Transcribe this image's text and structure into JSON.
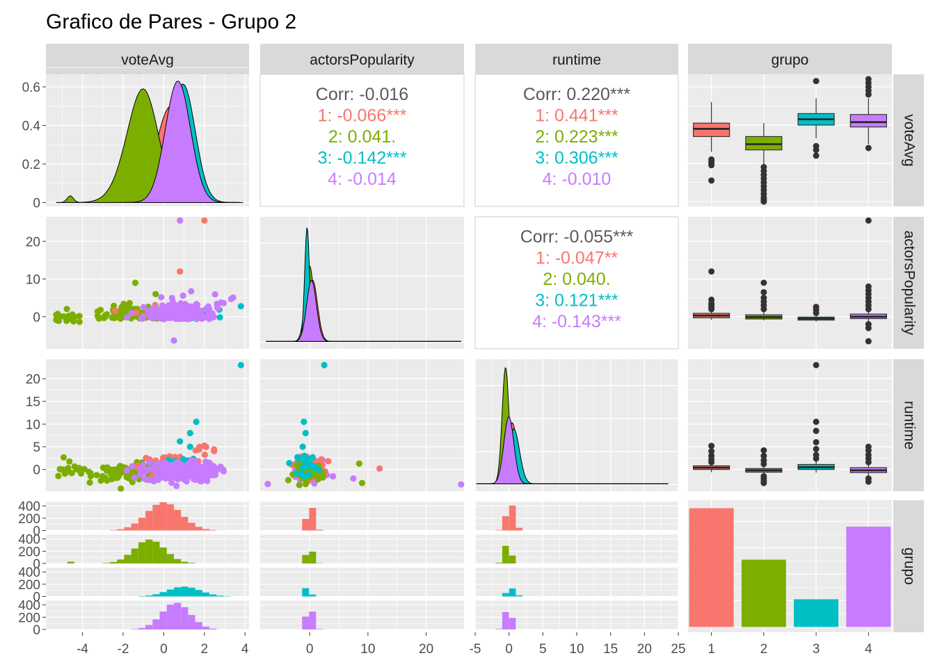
{
  "title": "Grafico de Pares - Grupo 2",
  "vars": [
    "voteAvg",
    "actorsPopularity",
    "runtime",
    "grupo"
  ],
  "colors": {
    "1": "#F8766D",
    "2": "#7CAE00",
    "3": "#00BFC4",
    "4": "#C77CFF"
  },
  "groups": [
    "1",
    "2",
    "3",
    "4"
  ],
  "chart_data": {
    "type": "scatter",
    "title": "Grafico de Pares - Grupo 2",
    "variables": [
      "voteAvg",
      "actorsPopularity",
      "runtime",
      "grupo"
    ],
    "axes": {
      "voteAvg": {
        "range": [
          -5.8,
          4.2
        ],
        "ticks": [
          -4,
          -2,
          0,
          2,
          4
        ]
      },
      "actorsPopularity": {
        "range": [
          -8.5,
          26.5
        ],
        "ticks": [
          0,
          10,
          20
        ]
      },
      "runtime": {
        "range": [
          -5,
          25
        ],
        "ticks": [
          -5,
          0,
          5,
          10,
          15,
          20,
          25
        ]
      },
      "grupo": {
        "ticks": [
          "1",
          "2",
          "3",
          "4"
        ]
      }
    },
    "row_ticks": {
      "voteAvg_density": [
        0.0,
        0.2,
        0.4,
        0.6
      ],
      "actorsPopularity": [
        0,
        10,
        20
      ],
      "runtime": [
        0,
        5,
        10,
        15,
        20
      ],
      "histogram_count": [
        0,
        200,
        400
      ]
    },
    "correlations": [
      {
        "pair": [
          "voteAvg",
          "actorsPopularity"
        ],
        "lines": [
          {
            "label": "Corr: -0.016",
            "group": "all"
          },
          {
            "label": "1: -0.066***",
            "group": "1"
          },
          {
            "label": "2: 0.041.",
            "group": "2"
          },
          {
            "label": "3: -0.142***",
            "group": "3"
          },
          {
            "label": "4: -0.014",
            "group": "4"
          }
        ]
      },
      {
        "pair": [
          "voteAvg",
          "runtime"
        ],
        "lines": [
          {
            "label": "Corr: 0.220***",
            "group": "all"
          },
          {
            "label": "1: 0.441***",
            "group": "1"
          },
          {
            "label": "2: 0.223***",
            "group": "2"
          },
          {
            "label": "3: 0.306***",
            "group": "3"
          },
          {
            "label": "4: -0.010",
            "group": "4"
          }
        ]
      },
      {
        "pair": [
          "actorsPopularity",
          "runtime"
        ],
        "lines": [
          {
            "label": "Corr: -0.055***",
            "group": "all"
          },
          {
            "label": "1: -0.047**",
            "group": "1"
          },
          {
            "label": "2: 0.040.",
            "group": "2"
          },
          {
            "label": "3: 0.121***",
            "group": "3"
          },
          {
            "label": "4: -0.143***",
            "group": "4"
          }
        ]
      }
    ],
    "group_counts": {
      "1": 450,
      "2": 255,
      "3": 105,
      "4": 380
    },
    "boxplots": {
      "voteAvg": [
        {
          "group": "1",
          "q1": 0.34,
          "median": 0.38,
          "q3": 0.41,
          "lower": 0.26,
          "upper": 0.52,
          "outliers": [
            0.11,
            0.19,
            0.2,
            0.21,
            0.22
          ]
        },
        {
          "group": "2",
          "q1": 0.27,
          "median": 0.3,
          "q3": 0.34,
          "lower": 0.19,
          "upper": 0.41,
          "outliers": [
            0.0,
            0.01,
            0.02,
            0.04,
            0.06,
            0.08,
            0.1,
            0.12,
            0.14,
            0.16,
            0.18
          ]
        },
        {
          "group": "3",
          "q1": 0.4,
          "median": 0.43,
          "q3": 0.46,
          "lower": 0.33,
          "upper": 0.54,
          "outliers": [
            0.24,
            0.27,
            0.29,
            0.63
          ]
        },
        {
          "group": "4",
          "q1": 0.39,
          "median": 0.415,
          "q3": 0.455,
          "lower": 0.3,
          "upper": 0.54,
          "outliers": [
            0.28,
            0.56,
            0.58,
            0.6,
            0.62,
            0.64
          ]
        }
      ],
      "actorsPopularity": [
        {
          "group": "1",
          "q1": -0.3,
          "median": 0.3,
          "q3": 0.9,
          "lower": -0.8,
          "upper": 1.6,
          "outliers": [
            2.0,
            2.5,
            3.0,
            3.5,
            4.5,
            12.0
          ]
        },
        {
          "group": "2",
          "q1": -0.6,
          "median": -0.1,
          "q3": 0.5,
          "lower": -1.0,
          "upper": 1.3,
          "outliers": [
            2.0,
            3.0,
            4.0,
            5.0,
            6.5,
            9.0
          ]
        },
        {
          "group": "3",
          "q1": -0.9,
          "median": -0.5,
          "q3": -0.1,
          "lower": -1.3,
          "upper": 0.5,
          "outliers": [
            1.0,
            1.8,
            2.6
          ]
        },
        {
          "group": "4",
          "q1": -0.5,
          "median": 0.0,
          "q3": 0.7,
          "lower": -1.3,
          "upper": 1.6,
          "outliers": [
            -2.0,
            -3.0,
            -6.5,
            2.0,
            3.0,
            4.0,
            5.0,
            6.0,
            7.0,
            8.0,
            25.5
          ]
        }
      ],
      "runtime": [
        {
          "group": "1",
          "q1": 0.0,
          "median": 0.4,
          "q3": 0.8,
          "lower": -0.6,
          "upper": 1.3,
          "outliers": [
            1.6,
            2.2,
            3.0,
            4.0,
            5.2
          ]
        },
        {
          "group": "2",
          "q1": -0.6,
          "median": -0.2,
          "q3": 0.2,
          "lower": -1.1,
          "upper": 0.8,
          "outliers": [
            -1.5,
            -2.0,
            -2.5,
            -3.0,
            1.2,
            2.0,
            3.0,
            4.2
          ]
        },
        {
          "group": "3",
          "q1": 0.0,
          "median": 0.5,
          "q3": 1.1,
          "lower": -0.7,
          "upper": 1.9,
          "outliers": [
            2.4,
            3.2,
            4.5,
            6.0,
            8.5,
            10.5,
            23.0
          ]
        },
        {
          "group": "4",
          "q1": -0.7,
          "median": -0.2,
          "q3": 0.4,
          "lower": -1.4,
          "upper": 1.2,
          "outliers": [
            -2.0,
            -2.7,
            1.6,
            2.4,
            3.2,
            4.2,
            5.0
          ]
        }
      ]
    }
  }
}
